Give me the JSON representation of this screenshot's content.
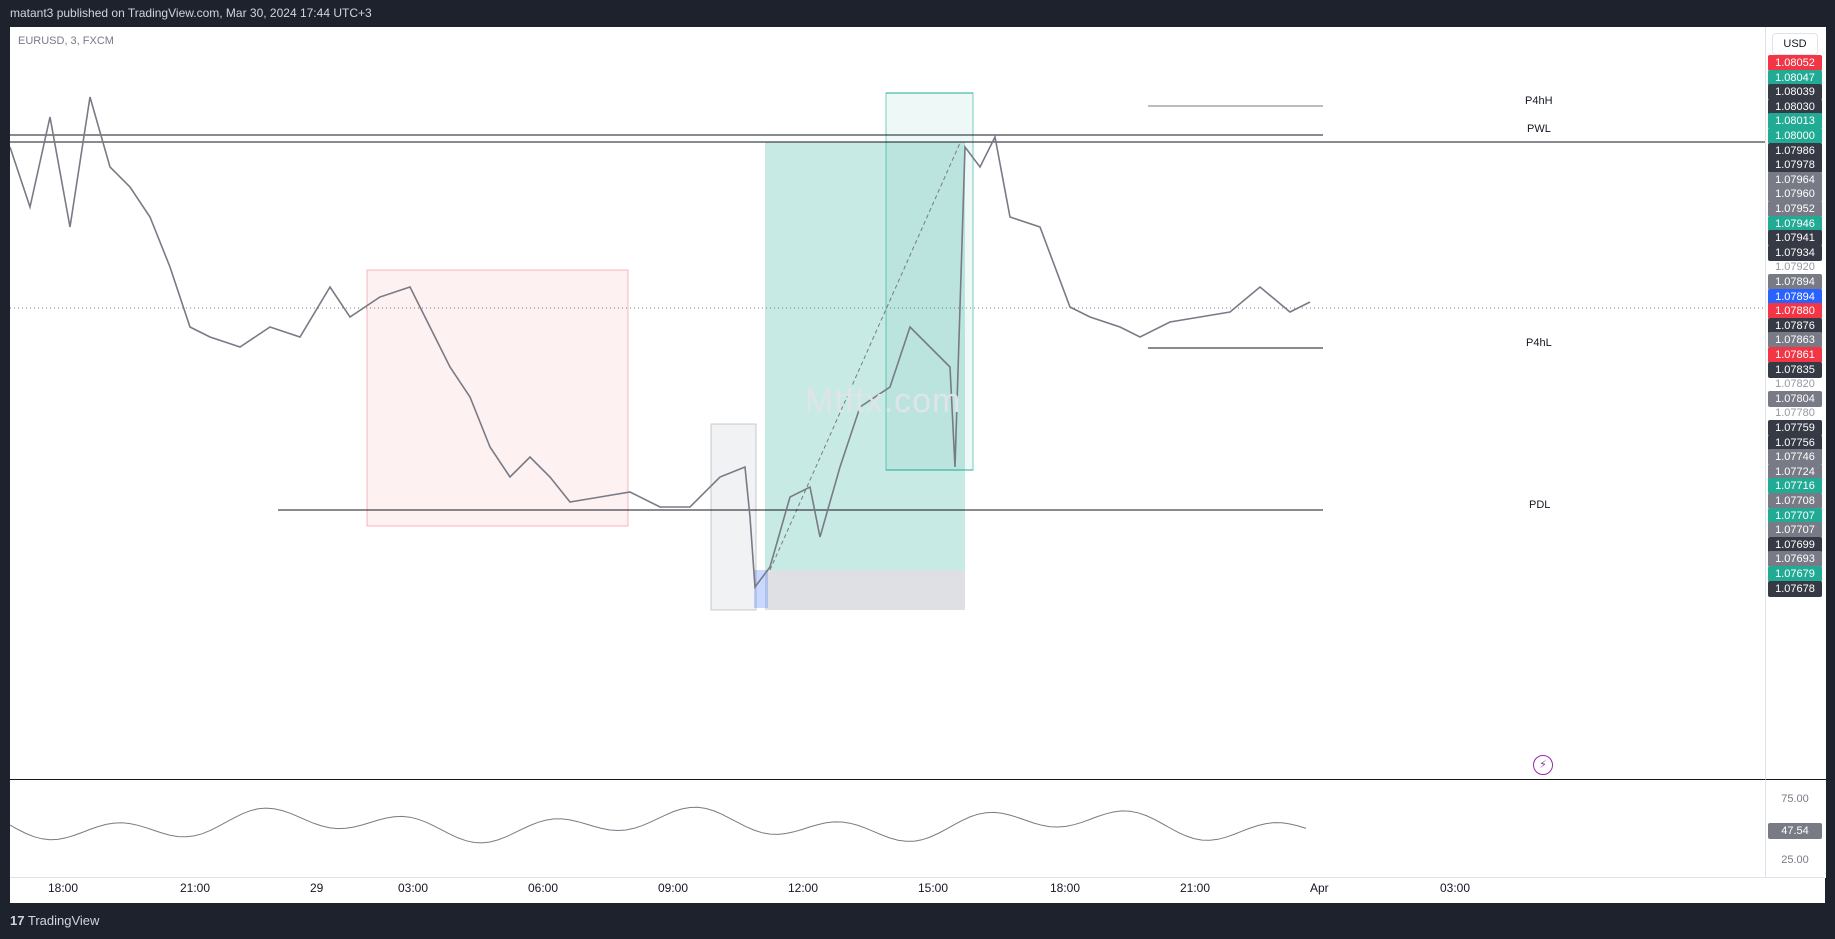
{
  "header": {
    "published_text": "matant3 published on TradingView.com, Mar 30, 2024 17:44 UTC+3"
  },
  "symbol": "EURUSD, 3, FXCM",
  "watermark": "Mtftx.com",
  "currency_button": "USD",
  "levels": {
    "p4hh": "P4hH",
    "pwl": "PWL",
    "pdl": "PDL",
    "p4hl": "P4hL"
  },
  "price_axis": {
    "tags": [
      {
        "text": "1.08052",
        "color": "#f23645"
      },
      {
        "text": "1.08047",
        "color": "#22ab94"
      },
      {
        "text": "1.08039",
        "color": "#363a45"
      },
      {
        "text": "1.08030",
        "color": "#363a45"
      },
      {
        "text": "1.08013",
        "color": "#22ab94"
      },
      {
        "text": "1.08000",
        "color": "#22ab94"
      },
      {
        "text": "1.07986",
        "color": "#363a45"
      },
      {
        "text": "1.07978",
        "color": "#363a45"
      },
      {
        "text": "1.07964",
        "color": "#787b86"
      },
      {
        "text": "1.07960",
        "color": "#787b86"
      },
      {
        "text": "1.07952",
        "color": "#787b86"
      },
      {
        "text": "1.07946",
        "color": "#22ab94"
      },
      {
        "text": "1.07941",
        "color": "#363a45"
      },
      {
        "text": "1.07934",
        "color": "#363a45"
      },
      {
        "text": "1.07920",
        "color": ""
      },
      {
        "text": "1.07894",
        "color": "#787b86"
      },
      {
        "text": "1.07894",
        "color": "#2962ff"
      },
      {
        "text": "1.07880",
        "color": "#f23645"
      },
      {
        "text": "1.07876",
        "color": "#363a45"
      },
      {
        "text": "1.07863",
        "color": "#787b86"
      },
      {
        "text": "1.07861",
        "color": "#f23645"
      },
      {
        "text": "1.07835",
        "color": "#363a45"
      },
      {
        "text": "1.07820",
        "color": ""
      },
      {
        "text": "1.07804",
        "color": "#787b86"
      },
      {
        "text": "1.07780",
        "color": ""
      },
      {
        "text": "1.07759",
        "color": "#363a45"
      },
      {
        "text": "1.07756",
        "color": "#363a45"
      },
      {
        "text": "1.07746",
        "color": "#787b86"
      },
      {
        "text": "1.07724",
        "color": "#787b86"
      },
      {
        "text": "1.07716",
        "color": "#22ab94"
      },
      {
        "text": "1.07708",
        "color": "#787b86"
      },
      {
        "text": "1.07707",
        "color": "#22ab94"
      },
      {
        "text": "1.07707",
        "color": "#787b86"
      },
      {
        "text": "1.07699",
        "color": "#363a45"
      },
      {
        "text": "1.07693",
        "color": "#787b86"
      },
      {
        "text": "1.07679",
        "color": "#22ab94"
      },
      {
        "text": "1.07678",
        "color": "#363a45"
      }
    ]
  },
  "rsi": {
    "upper": "75.00",
    "lower": "25.00",
    "value": "47.54"
  },
  "time_axis": [
    "18:00",
    "21:00",
    "29",
    "03:00",
    "06:00",
    "09:00",
    "12:00",
    "15:00",
    "18:00",
    "21:00",
    "Apr",
    "03:00"
  ],
  "footer": {
    "brand": "TradingView"
  },
  "colors": {
    "bull_box": "#22ab94",
    "bear_box": "#f23645",
    "candle": "#787b86"
  }
}
